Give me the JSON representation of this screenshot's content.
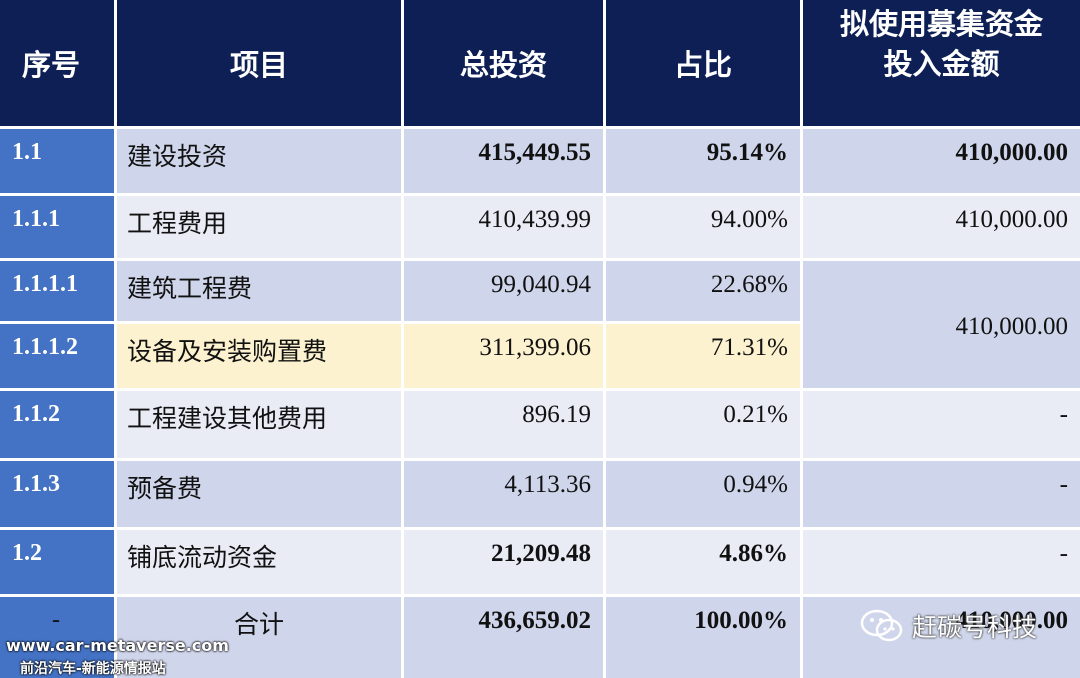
{
  "header": {
    "seq": "序号",
    "item": "项目",
    "total": "总投资",
    "ratio": "占比",
    "fund_line1": "拟使用募集资金",
    "fund_line2": "投入金额"
  },
  "rows": [
    {
      "seq": "1.1",
      "item": "建设投资",
      "total": "415,449.55",
      "ratio": "95.14%",
      "fund": "410,000.00"
    },
    {
      "seq": "1.1.1",
      "item": "工程费用",
      "total": "410,439.99",
      "ratio": "94.00%",
      "fund": "410,000.00"
    },
    {
      "seq": "1.1.1.1",
      "item": "建筑工程费",
      "total": "99,040.94",
      "ratio": "22.68%"
    },
    {
      "seq": "1.1.1.2",
      "item": "设备及安装购置费",
      "total": "311,399.06",
      "ratio": "71.31%"
    },
    {
      "seq": "1.1.2",
      "item": "工程建设其他费用",
      "total": "896.19",
      "ratio": "0.21%",
      "fund": "-"
    },
    {
      "seq": "1.1.3",
      "item": "预备费",
      "total": "4,113.36",
      "ratio": "0.94%",
      "fund": "-"
    },
    {
      "seq": "1.2",
      "item": "铺底流动资金",
      "total": "21,209.48",
      "ratio": "4.86%",
      "fund": "-"
    },
    {
      "seq": "-",
      "item": "合计",
      "total": "436,659.02",
      "ratio": "100.00%",
      "fund": "410,000.00"
    }
  ],
  "merged_fund": "410,000.00",
  "watermarks": {
    "url": "www.car-metaverse.com",
    "site": "前沿汽车-新能源情报站",
    "account": "赶碳号科技",
    "account_icon": "wechat-icon"
  },
  "colors": {
    "header_bg": "#0d1f55",
    "seq_bg": "#4472c4",
    "row_dark": "#cfd5ea",
    "row_light": "#e9ebf5",
    "highlight": "#fdf2cf"
  }
}
